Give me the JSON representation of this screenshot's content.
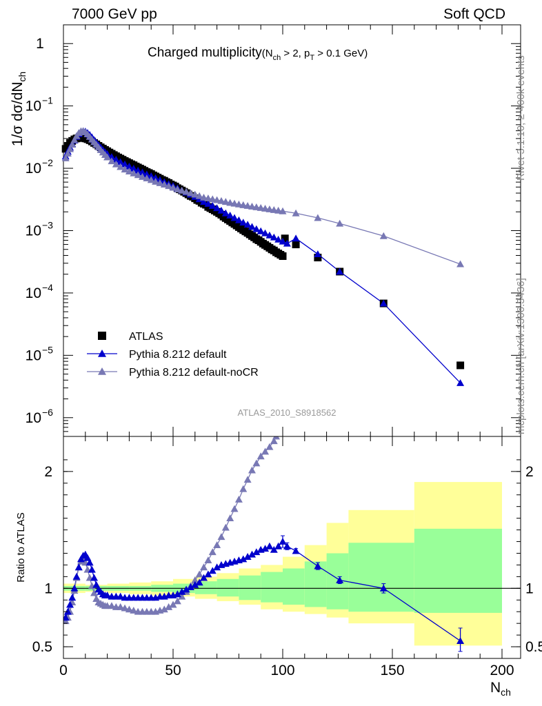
{
  "header": {
    "energy_label": "7000 GeV pp",
    "category_label": "Soft QCD"
  },
  "side_labels": {
    "rivet": "Rivet 3.1.10, ≥ 400k events",
    "mcplots": "mcplots.cern.ch [arXiv:1306.3436]"
  },
  "chart_data": [
    {
      "type": "scatter",
      "panel": "main",
      "title": "Charged multiplicity",
      "title_cuts": {
        "nch_lhs": "(N",
        "nch_sub": "ch",
        "nch_rhs": " > 2, p",
        "pt_sub": "T",
        "pt_rhs": " > 0.1 GeV)"
      },
      "ylabel": {
        "main": "1/σ dσ/dN",
        "sub": "ch"
      },
      "yscale": "log",
      "ylim": [
        5e-07,
        2
      ],
      "xlim": [
        0,
        200
      ],
      "yticks": [
        {
          "v": 1,
          "mant": "1",
          "exp": ""
        },
        {
          "v": 0.1,
          "mant": "10",
          "exp": "−1"
        },
        {
          "v": 0.01,
          "mant": "10",
          "exp": "−2"
        },
        {
          "v": 0.001,
          "mant": "10",
          "exp": "−3"
        },
        {
          "v": 0.0001,
          "mant": "10",
          "exp": "−4"
        },
        {
          "v": 1e-05,
          "mant": "10",
          "exp": "−5"
        },
        {
          "v": 1e-06,
          "mant": "10",
          "exp": "−6"
        }
      ],
      "analysis_tag": "ATLAS_2010_S8918562",
      "legend": {
        "placement": "bottom-left",
        "entries": [
          "ATLAS",
          "Pythia 8.212 default",
          "Pythia 8.212 default-noCR"
        ]
      },
      "series": [
        {
          "name": "ATLAS",
          "color": "#000000",
          "marker": "square",
          "x": [
            1,
            2,
            3,
            4,
            5,
            6,
            7,
            8,
            9,
            10,
            11,
            12,
            13,
            14,
            15,
            16,
            17,
            18,
            19,
            20,
            21,
            22,
            23,
            24,
            25,
            26,
            27,
            28,
            29,
            30,
            31,
            32,
            33,
            34,
            35,
            36,
            37,
            38,
            39,
            40,
            41,
            42,
            43,
            44,
            45,
            46,
            47,
            48,
            49,
            50,
            51,
            52,
            53,
            54,
            55,
            56,
            57,
            58,
            59,
            60,
            61,
            62,
            63,
            64,
            65,
            66,
            67,
            68,
            69,
            70,
            71,
            72,
            73,
            74,
            75,
            76,
            77,
            78,
            79,
            80,
            81,
            82,
            83,
            84,
            85,
            86,
            87,
            88,
            89,
            90,
            91,
            92,
            93,
            94,
            95,
            96,
            97,
            98,
            99,
            100,
            101,
            106,
            116,
            126,
            146,
            181
          ],
          "y": [
            0.0205,
            0.0229,
            0.0255,
            0.0275,
            0.0291,
            0.0301,
            0.0306,
            0.0309,
            0.0307,
            0.0301,
            0.0293,
            0.0282,
            0.0269,
            0.0255,
            0.0242,
            0.0229,
            0.0217,
            0.0207,
            0.0197,
            0.0188,
            0.0179,
            0.0171,
            0.0163,
            0.0156,
            0.0149,
            0.0143,
            0.0137,
            0.0131,
            0.0126,
            0.0121,
            0.0116,
            0.0112,
            0.0107,
            0.0103,
            0.0099,
            0.0095,
            0.0091,
            0.0087,
            0.0084,
            0.0081,
            0.0077,
            0.0074,
            0.0071,
            0.0068,
            0.0065,
            0.0063,
            0.006,
            0.0058,
            0.0055,
            0.0053,
            0.0051,
            0.0048,
            0.0046,
            0.0044,
            0.0042,
            0.004,
            0.0038,
            0.0036,
            0.0035,
            0.0033,
            0.0031,
            0.003,
            0.0028,
            0.0027,
            0.0026,
            0.0024,
            0.0023,
            0.0022,
            0.0021,
            0.002,
            0.0019,
            0.0018,
            0.00168,
            0.00159,
            0.00151,
            0.00143,
            0.00135,
            0.00128,
            0.00121,
            0.00114,
            0.00108,
            0.00102,
            0.00097,
            0.00092,
            0.00087,
            0.00082,
            0.00078,
            0.00073,
            0.0007,
            0.00066,
            0.00062,
            0.00059,
            0.00056,
            0.00053,
            0.0005,
            0.00048,
            0.00045,
            0.00043,
            0.00041,
            0.00039,
            0.00075,
            0.0006,
            0.00037,
            0.00022,
            6.8e-05,
            6.9e-06
          ]
        },
        {
          "name": "Pythia 8.212 default",
          "color": "#0000cc",
          "marker": "triangle",
          "x": [
            1,
            2,
            3,
            4,
            5,
            6,
            7,
            8,
            9,
            10,
            11,
            12,
            13,
            14,
            15,
            16,
            17,
            18,
            19,
            20,
            22,
            24,
            26,
            28,
            30,
            32,
            34,
            36,
            38,
            40,
            42,
            44,
            46,
            48,
            50,
            52,
            54,
            56,
            58,
            60,
            62,
            64,
            66,
            68,
            70,
            72,
            74,
            76,
            78,
            80,
            82,
            84,
            86,
            88,
            90,
            92,
            94,
            96,
            98,
            100,
            102,
            106,
            116,
            126,
            146,
            181
          ],
          "y": [
            0.0155,
            0.0185,
            0.0215,
            0.0245,
            0.028,
            0.032,
            0.0355,
            0.0385,
            0.0395,
            0.039,
            0.037,
            0.0345,
            0.0315,
            0.0285,
            0.0258,
            0.0235,
            0.0215,
            0.0197,
            0.0182,
            0.017,
            0.0152,
            0.0138,
            0.0126,
            0.0116,
            0.0107,
            0.0099,
            0.0092,
            0.0086,
            0.008,
            0.0075,
            0.007,
            0.0065,
            0.006,
            0.0056,
            0.0052,
            0.0048,
            0.0044,
            0.0041,
            0.0038,
            0.0035,
            0.0032,
            0.0029,
            0.0027,
            0.0025,
            0.0023,
            0.0021,
            0.0019,
            0.00175,
            0.0016,
            0.00147,
            0.00135,
            0.00125,
            0.00115,
            0.00106,
            0.00098,
            0.00091,
            0.00084,
            0.00078,
            0.00072,
            0.00067,
            0.00062,
            0.00075,
            0.00042,
            0.00022,
            6.8e-05,
            3.6e-06
          ]
        },
        {
          "name": "Pythia 8.212 default-noCR",
          "color": "#7878b4",
          "marker": "triangle",
          "x": [
            1,
            2,
            3,
            4,
            5,
            6,
            7,
            8,
            9,
            10,
            11,
            12,
            13,
            14,
            15,
            16,
            17,
            18,
            19,
            20,
            22,
            24,
            26,
            28,
            30,
            32,
            34,
            36,
            38,
            40,
            42,
            44,
            46,
            48,
            50,
            52,
            54,
            56,
            58,
            60,
            62,
            64,
            66,
            68,
            70,
            72,
            74,
            76,
            78,
            80,
            82,
            84,
            86,
            88,
            90,
            92,
            94,
            96,
            98,
            100,
            106,
            116,
            126,
            146,
            181
          ],
          "y": [
            0.0145,
            0.0172,
            0.0203,
            0.024,
            0.0285,
            0.033,
            0.037,
            0.0395,
            0.0398,
            0.038,
            0.0352,
            0.032,
            0.029,
            0.0263,
            0.024,
            0.0218,
            0.0197,
            0.018,
            0.0164,
            0.015,
            0.013,
            0.0116,
            0.0105,
            0.0096,
            0.0089,
            0.0083,
            0.0078,
            0.0073,
            0.0069,
            0.0065,
            0.0061,
            0.0058,
            0.0055,
            0.0052,
            0.0049,
            0.0046,
            0.0044,
            0.0042,
            0.004,
            0.0038,
            0.0036,
            0.0034,
            0.0033,
            0.0032,
            0.0031,
            0.003,
            0.0029,
            0.0028,
            0.00272,
            0.00264,
            0.00257,
            0.0025,
            0.00244,
            0.00238,
            0.00232,
            0.00226,
            0.0022,
            0.00215,
            0.0021,
            0.00205,
            0.0019,
            0.0016,
            0.0013,
            0.00082,
            0.00029
          ]
        }
      ]
    },
    {
      "type": "scatter",
      "panel": "ratio",
      "ylabel": "Ratio to ATLAS",
      "ylim": [
        0.4,
        2.3
      ],
      "xlim": [
        0,
        200
      ],
      "xlabel": {
        "main": "N",
        "sub": "ch"
      },
      "yticks_left": [
        "2",
        "1",
        "0.5"
      ],
      "yticks_right": [
        "2",
        "1",
        "0.5"
      ],
      "yticks_values": [
        2,
        1,
        0.5
      ],
      "xticks": [
        "0",
        "50",
        "100",
        "150",
        "200"
      ],
      "xticks_values": [
        0,
        50,
        100,
        150,
        200
      ],
      "uncertainty_bands": {
        "edges": [
          0,
          10,
          20,
          30,
          40,
          50,
          60,
          70,
          80,
          90,
          100,
          110,
          120,
          130,
          160,
          200
        ],
        "yellow_lo": [
          0.96,
          0.97,
          0.96,
          0.95,
          0.94,
          0.93,
          0.91,
          0.89,
          0.86,
          0.82,
          0.8,
          0.78,
          0.75,
          0.7,
          0.51
        ],
        "yellow_hi": [
          1.04,
          1.03,
          1.04,
          1.05,
          1.06,
          1.08,
          1.1,
          1.13,
          1.17,
          1.2,
          1.27,
          1.37,
          1.56,
          1.67,
          1.91
        ],
        "green_lo": [
          0.98,
          0.98,
          0.98,
          0.98,
          0.97,
          0.96,
          0.95,
          0.93,
          0.9,
          0.88,
          0.86,
          0.84,
          0.82,
          0.8,
          0.79
        ],
        "green_hi": [
          1.02,
          1.02,
          1.02,
          1.02,
          1.03,
          1.04,
          1.06,
          1.08,
          1.11,
          1.14,
          1.17,
          1.23,
          1.3,
          1.39,
          1.51
        ],
        "yellow_color": "#ffff99",
        "green_color": "#99ff99"
      },
      "series": [
        {
          "name": "Pythia 8.212 default",
          "color": "#0000cc",
          "x": [
            1,
            2,
            3,
            4,
            5,
            6,
            7,
            8,
            9,
            10,
            11,
            12,
            13,
            14,
            15,
            16,
            17,
            18,
            19,
            20,
            22,
            24,
            26,
            28,
            30,
            32,
            34,
            36,
            38,
            40,
            42,
            44,
            46,
            48,
            50,
            52,
            54,
            56,
            58,
            60,
            62,
            64,
            66,
            68,
            70,
            72,
            74,
            76,
            78,
            80,
            82,
            84,
            86,
            88,
            90,
            92,
            94,
            96,
            98,
            100,
            102,
            106,
            116,
            126,
            146,
            181
          ],
          "y": [
            0.75,
            0.8,
            0.86,
            0.92,
            1.0,
            1.1,
            1.18,
            1.25,
            1.28,
            1.29,
            1.26,
            1.22,
            1.16,
            1.09,
            1.03,
            0.99,
            0.97,
            0.95,
            0.94,
            0.94,
            0.93,
            0.93,
            0.93,
            0.92,
            0.92,
            0.92,
            0.92,
            0.92,
            0.92,
            0.92,
            0.92,
            0.93,
            0.93,
            0.94,
            0.94,
            0.95,
            0.97,
            0.99,
            1.01,
            1.03,
            1.05,
            1.09,
            1.12,
            1.15,
            1.18,
            1.2,
            1.21,
            1.22,
            1.23,
            1.24,
            1.25,
            1.27,
            1.29,
            1.31,
            1.33,
            1.34,
            1.36,
            1.33,
            1.36,
            1.4,
            1.36,
            1.32,
            1.19,
            1.07,
            1.0,
            0.55
          ],
          "err_hi": [
            0,
            0,
            0,
            0,
            0,
            0,
            0,
            0,
            0,
            0,
            0,
            0,
            0,
            0,
            0,
            0,
            0,
            0,
            0,
            0,
            0,
            0,
            0,
            0,
            0,
            0,
            0,
            0,
            0,
            0,
            0,
            0,
            0,
            0,
            0,
            0,
            0,
            0,
            0,
            0,
            0,
            0,
            0,
            0,
            0,
            0,
            0,
            0,
            0,
            0,
            0,
            0,
            0,
            0,
            0,
            0,
            0,
            0,
            0,
            0.05,
            0.03,
            0.02,
            0.03,
            0.03,
            0.04,
            0.11
          ],
          "err_lo": [
            0,
            0,
            0,
            0,
            0,
            0,
            0,
            0,
            0,
            0,
            0,
            0,
            0,
            0,
            0,
            0,
            0,
            0,
            0,
            0,
            0,
            0,
            0,
            0,
            0,
            0,
            0,
            0,
            0,
            0,
            0,
            0,
            0,
            0,
            0,
            0,
            0,
            0,
            0,
            0,
            0,
            0,
            0,
            0,
            0,
            0,
            0,
            0,
            0,
            0,
            0,
            0,
            0,
            0,
            0,
            0,
            0,
            0,
            0,
            0.05,
            0.03,
            0.02,
            0.03,
            0.03,
            0.04,
            0.09
          ]
        },
        {
          "name": "Pythia 8.212 default-noCR",
          "color": "#7878b4",
          "x": [
            1,
            2,
            3,
            4,
            5,
            6,
            7,
            8,
            9,
            10,
            11,
            12,
            13,
            14,
            15,
            16,
            17,
            18,
            19,
            20,
            22,
            24,
            26,
            28,
            30,
            32,
            34,
            36,
            38,
            40,
            42,
            44,
            46,
            48,
            50,
            52,
            54,
            56,
            58,
            60,
            62,
            64,
            66,
            68,
            70,
            72,
            74,
            76,
            78,
            80,
            82,
            84,
            86,
            88,
            90,
            92,
            94,
            96,
            97
          ],
          "y": [
            0.72,
            0.75,
            0.8,
            0.88,
            0.98,
            1.09,
            1.18,
            1.23,
            1.25,
            1.22,
            1.16,
            1.09,
            1.02,
            0.96,
            0.91,
            0.88,
            0.87,
            0.86,
            0.85,
            0.85,
            0.85,
            0.84,
            0.84,
            0.83,
            0.82,
            0.81,
            0.8,
            0.8,
            0.8,
            0.8,
            0.8,
            0.81,
            0.82,
            0.84,
            0.86,
            0.89,
            0.93,
            0.97,
            1.02,
            1.07,
            1.12,
            1.18,
            1.24,
            1.31,
            1.37,
            1.44,
            1.52,
            1.6,
            1.68,
            1.76,
            1.85,
            1.93,
            2.01,
            2.07,
            2.13,
            2.17,
            2.21,
            2.26,
            2.3
          ]
        }
      ]
    }
  ]
}
